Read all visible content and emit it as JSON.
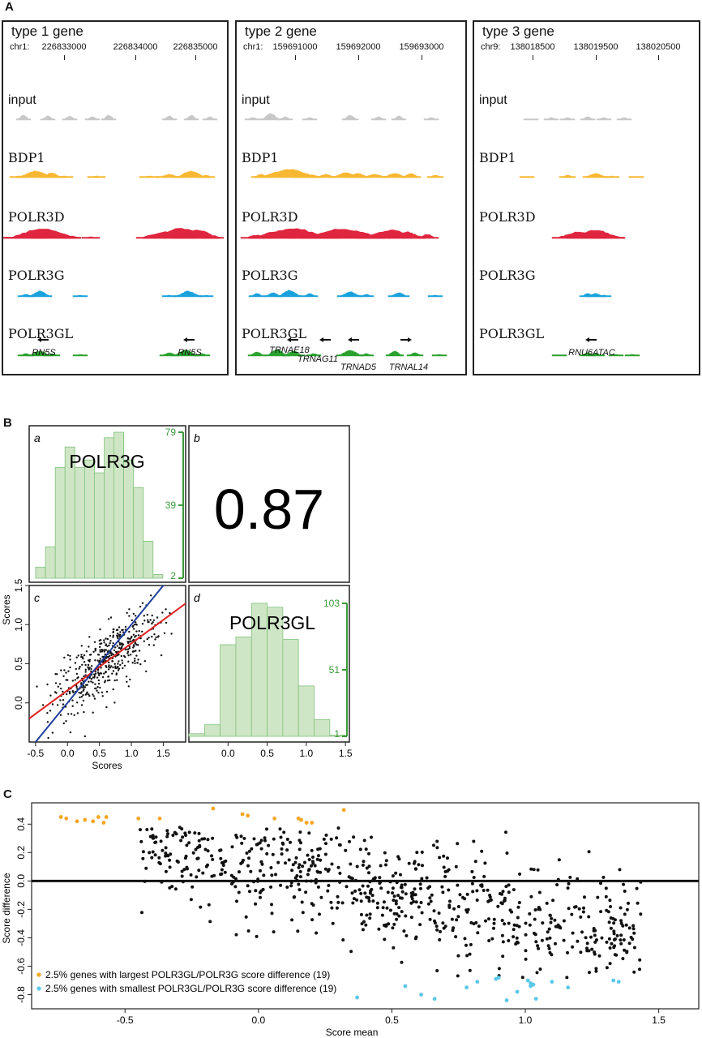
{
  "panels": {
    "A": "A",
    "B": "B",
    "C": "C"
  },
  "panelA": [
    {
      "title": "type 1 gene",
      "chrom": "chr1:",
      "coords": [
        "226833000",
        "226834000",
        "226835000"
      ],
      "coord_x": [
        75,
        163,
        237
      ],
      "tracks": [
        "input",
        "BDP1",
        "POLR3D",
        "POLR3G",
        "POLR3GL"
      ],
      "genes": [
        {
          "name": "RN5S",
          "x": 50,
          "dir": "left"
        },
        {
          "name": "RN5S",
          "x": 230,
          "dir": "left"
        }
      ]
    },
    {
      "title": "type 2 gene",
      "chrom": "chr1:",
      "coords": [
        "159691000",
        "159692000",
        "159693000"
      ],
      "coord_x": [
        72,
        150,
        228
      ],
      "tracks": [
        "input",
        "BDP1",
        "POLR3D",
        "POLR3G",
        "POLR3GL"
      ],
      "genes": [
        {
          "name": "TRNAE18",
          "x": 65,
          "dir": "left"
        },
        {
          "name": "TRNAG11",
          "x": 100,
          "dir": "left"
        },
        {
          "name": "TRNAD5",
          "x": 150,
          "dir": "left"
        },
        {
          "name": "TRNAL14",
          "x": 212,
          "dir": "right"
        }
      ]
    },
    {
      "title": "type 3 gene",
      "chrom": "chr9:",
      "coords": [
        "138018500",
        "138019500",
        "138020500"
      ],
      "coord_x": [
        72,
        150,
        227
      ],
      "tracks": [
        "input",
        "BDP1",
        "POLR3D",
        "POLR3G",
        "POLR3GL"
      ],
      "genes": [
        {
          "name": "RNU6ATAC",
          "x": 145,
          "dir": "left"
        }
      ]
    }
  ],
  "colors": {
    "input": "#c8c8c8",
    "BDP1": "#f7b731",
    "POLR3D": "#e0253f",
    "POLR3G": "#1ba1dc",
    "POLR3GL": "#2aa12f",
    "hist_fill": "#cfe6c6",
    "hist_stroke": "#7fc27a",
    "hist_axis": "#3a9a3a",
    "fit_red": "#e02020",
    "fit_blue": "#1f3f9f",
    "top_orange": "#f5a623",
    "bottom_blue": "#5bc8e8"
  },
  "panelB": {
    "sub_a": {
      "letter": "a",
      "label": "POLR3G",
      "ticks": [
        "79",
        "39",
        "2"
      ]
    },
    "sub_b": {
      "letter": "b",
      "value": "0.87"
    },
    "sub_c": {
      "letter": "c",
      "xlabel": "Scores",
      "ylabel": "Scores"
    },
    "sub_d": {
      "letter": "d",
      "label": "POLR3GL",
      "ticks": [
        "103",
        "51",
        "1"
      ]
    }
  },
  "chart_data": [
    {
      "type": "bar",
      "name_label": "POLR3G",
      "bin_edges": [
        -0.5,
        -0.35,
        -0.2,
        -0.05,
        0.1,
        0.25,
        0.4,
        0.55,
        0.7,
        0.85,
        1.0,
        1.15,
        1.3,
        1.45
      ],
      "values": [
        6,
        17,
        60,
        71,
        60,
        64,
        57,
        76,
        79,
        64,
        49,
        20,
        2
      ],
      "count_axis_ticks": [
        2,
        39,
        79
      ],
      "xlim": [
        -0.6,
        1.8
      ]
    },
    {
      "type": "scatter",
      "title": "",
      "xlabel": "Scores",
      "ylabel": "Scores",
      "xlim": [
        -0.6,
        1.85
      ],
      "ylim": [
        -0.5,
        1.5
      ],
      "x_ticks": [
        -0.5,
        0.0,
        0.5,
        1.0,
        1.5
      ],
      "y_ticks": [
        0.0,
        0.5,
        1.0,
        1.5
      ],
      "n_points": 480,
      "fits": [
        {
          "color": "red",
          "slope": 0.6,
          "intercept": 0.16
        },
        {
          "color": "blue",
          "slope": 1.0,
          "intercept": 0.0
        }
      ],
      "correlation": 0.87
    },
    {
      "type": "bar",
      "name_label": "POLR3GL",
      "bin_edges": [
        -0.5,
        -0.3,
        -0.1,
        0.1,
        0.3,
        0.5,
        0.7,
        0.9,
        1.1,
        1.3,
        1.5
      ],
      "values": [
        2,
        9,
        71,
        77,
        103,
        100,
        75,
        39,
        13,
        1
      ],
      "count_axis_ticks": [
        1,
        51,
        103
      ],
      "xlim": [
        -0.5,
        1.55
      ],
      "x_ticks": [
        0.0,
        0.5,
        1.0,
        1.5
      ]
    },
    {
      "type": "scatter",
      "title": "",
      "xlabel": "Score mean",
      "ylabel": "Score difference",
      "xlim": [
        -0.85,
        1.65
      ],
      "ylim": [
        -0.9,
        0.55
      ],
      "x_ticks": [
        -0.5,
        0.0,
        0.5,
        1.0,
        1.5
      ],
      "y_ticks": [
        -0.8,
        -0.6,
        -0.4,
        -0.2,
        0.0,
        0.2,
        0.4
      ],
      "reference_line_y": 0.0,
      "legend": [
        {
          "label": "2.5% genes with largest POLR3GL/POLR3G score difference (19)",
          "color": "orange"
        },
        {
          "label": "2.5% genes with smallest POLR3GL/POLR3G score difference (19)",
          "color": "blue"
        }
      ],
      "top_points": [
        [
          -0.74,
          0.45
        ],
        [
          -0.72,
          0.44
        ],
        [
          -0.68,
          0.42
        ],
        [
          -0.65,
          0.43
        ],
        [
          -0.6,
          0.45
        ],
        [
          -0.57,
          0.45
        ],
        [
          -0.45,
          0.44
        ],
        [
          -0.37,
          0.44
        ],
        [
          -0.17,
          0.51
        ],
        [
          -0.06,
          0.47
        ],
        [
          -0.04,
          0.46
        ],
        [
          0.06,
          0.44
        ],
        [
          0.15,
          0.44
        ],
        [
          0.16,
          0.43
        ],
        [
          0.18,
          0.41
        ],
        [
          0.2,
          0.41
        ],
        [
          0.32,
          0.5
        ],
        [
          -0.62,
          0.42
        ],
        [
          -0.58,
          0.41
        ]
      ],
      "bottom_points": [
        [
          0.37,
          -0.82
        ],
        [
          0.55,
          -0.74
        ],
        [
          0.61,
          -0.8
        ],
        [
          0.66,
          -0.83
        ],
        [
          0.78,
          -0.75
        ],
        [
          0.82,
          -0.71
        ],
        [
          0.89,
          -0.69
        ],
        [
          0.9,
          -0.68
        ],
        [
          0.93,
          -0.84
        ],
        [
          1.01,
          -0.7
        ],
        [
          1.02,
          -0.72
        ],
        [
          1.03,
          -0.73
        ],
        [
          1.04,
          -0.83
        ],
        [
          1.1,
          -0.71
        ],
        [
          1.16,
          -0.75
        ],
        [
          1.33,
          -0.7
        ],
        [
          1.35,
          -0.71
        ],
        [
          1.02,
          -0.74
        ],
        [
          0.97,
          -0.78
        ]
      ],
      "n_points": 760
    }
  ]
}
